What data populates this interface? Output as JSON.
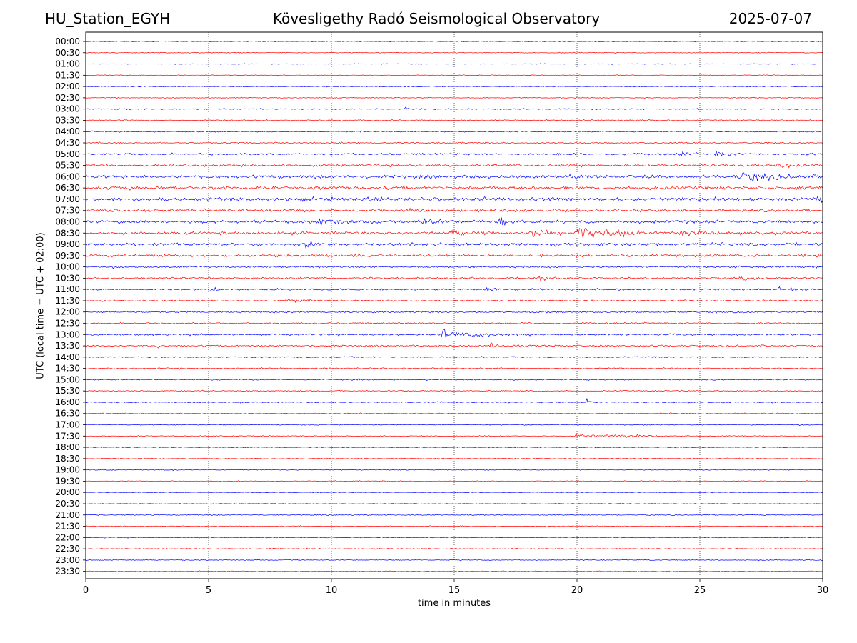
{
  "header": {
    "station": "HU_Station_EGYH",
    "observatory": "Kövesligethy Radó Seismological Observatory",
    "date": "2025-07-07"
  },
  "chart_data": {
    "type": "line",
    "title": "Kövesligethy Radó Seismological Observatory",
    "xlabel": "time in minutes",
    "ylabel": "UTC (local time = UTC + 02:00)",
    "xlim": [
      0,
      30
    ],
    "x_ticks": [
      "0",
      "5",
      "10",
      "15",
      "20",
      "25",
      "30"
    ],
    "grid": "vertical dotted lines at each x tick",
    "colors": {
      "even_rows": "#0000ff",
      "odd_rows": "#ff0000"
    },
    "rows": [
      "00:00",
      "00:30",
      "01:00",
      "01:30",
      "02:00",
      "02:30",
      "03:00",
      "03:30",
      "04:00",
      "04:30",
      "05:00",
      "05:30",
      "06:00",
      "06:30",
      "07:00",
      "07:30",
      "08:00",
      "08:30",
      "09:00",
      "09:30",
      "10:00",
      "10:30",
      "11:00",
      "11:30",
      "12:00",
      "12:30",
      "13:00",
      "13:30",
      "14:00",
      "14:30",
      "15:00",
      "15:30",
      "16:00",
      "16:30",
      "17:00",
      "17:30",
      "18:00",
      "18:30",
      "19:00",
      "19:30",
      "20:00",
      "20:30",
      "21:00",
      "21:30",
      "22:00",
      "22:30",
      "23:00",
      "23:30"
    ],
    "noise_level": [
      0.6,
      0.6,
      0.6,
      0.6,
      0.7,
      0.7,
      0.9,
      1.0,
      1.0,
      1.1,
      1.5,
      1.8,
      2.6,
      2.6,
      2.8,
      2.1,
      2.3,
      2.3,
      2.3,
      2.0,
      1.5,
      1.5,
      1.4,
      1.2,
      1.3,
      1.2,
      1.4,
      1.3,
      1.0,
      1.0,
      0.9,
      0.9,
      0.9,
      0.8,
      0.8,
      0.8,
      0.7,
      0.7,
      0.7,
      0.7,
      0.6,
      0.7,
      0.8,
      0.7,
      0.7,
      0.7,
      0.7,
      0.7
    ],
    "events": [
      {
        "row": "03:00",
        "t": 13.0,
        "amp": 5,
        "dur": 0.15
      },
      {
        "row": "05:00",
        "t": 24.2,
        "amp": 3,
        "dur": 0.5
      },
      {
        "row": "05:00",
        "t": 25.7,
        "amp": 4,
        "dur": 0.6
      },
      {
        "row": "05:30",
        "t": 28.2,
        "amp": 3,
        "dur": 0.8
      },
      {
        "row": "06:00",
        "t": 26.8,
        "amp": 5,
        "dur": 2.0
      },
      {
        "row": "07:00",
        "t": 11.0,
        "amp": 4,
        "dur": 0.5
      },
      {
        "row": "07:00",
        "t": 29.8,
        "amp": 6,
        "dur": 0.4
      },
      {
        "row": "07:30",
        "t": 0.6,
        "amp": 4,
        "dur": 0.5
      },
      {
        "row": "08:00",
        "t": 9.5,
        "amp": 4,
        "dur": 1.5
      },
      {
        "row": "08:00",
        "t": 13.8,
        "amp": 6,
        "dur": 1.0
      },
      {
        "row": "08:00",
        "t": 16.9,
        "amp": 8,
        "dur": 0.6
      },
      {
        "row": "08:30",
        "t": 14.8,
        "amp": 5,
        "dur": 1.0
      },
      {
        "row": "08:30",
        "t": 18.2,
        "amp": 6,
        "dur": 1.0
      },
      {
        "row": "08:30",
        "t": 20.2,
        "amp": 10,
        "dur": 1.5
      },
      {
        "row": "08:30",
        "t": 21.8,
        "amp": 7,
        "dur": 0.6
      },
      {
        "row": "08:30",
        "t": 24.3,
        "amp": 5,
        "dur": 0.8
      },
      {
        "row": "09:00",
        "t": 9.0,
        "amp": 4,
        "dur": 1.0
      },
      {
        "row": "09:30",
        "t": 2.8,
        "amp": 4,
        "dur": 0.3
      },
      {
        "row": "09:30",
        "t": 29.8,
        "amp": 5,
        "dur": 0.3
      },
      {
        "row": "10:30",
        "t": 18.3,
        "amp": 3,
        "dur": 0.8
      },
      {
        "row": "10:30",
        "t": 26.8,
        "amp": 3,
        "dur": 0.8
      },
      {
        "row": "11:00",
        "t": 5.0,
        "amp": 4,
        "dur": 0.4
      },
      {
        "row": "11:00",
        "t": 16.3,
        "amp": 4,
        "dur": 0.3
      },
      {
        "row": "11:00",
        "t": 28.3,
        "amp": 4,
        "dur": 0.5
      },
      {
        "row": "11:30",
        "t": 8.2,
        "amp": 5,
        "dur": 0.6
      },
      {
        "row": "13:00",
        "t": 14.6,
        "amp": 9,
        "dur": 0.8
      },
      {
        "row": "13:00",
        "t": 15.8,
        "amp": 4,
        "dur": 1.0
      },
      {
        "row": "13:30",
        "t": 2.9,
        "amp": 5,
        "dur": 0.2
      },
      {
        "row": "13:30",
        "t": 16.5,
        "amp": 5,
        "dur": 0.3
      },
      {
        "row": "16:00",
        "t": 20.4,
        "amp": 5,
        "dur": 0.25
      },
      {
        "row": "17:30",
        "t": 20.0,
        "amp": 6,
        "dur": 0.8
      },
      {
        "row": "17:30",
        "t": 21.5,
        "amp": 3,
        "dur": 1.5
      },
      {
        "row": "19:00",
        "t": 3.5,
        "amp": 3,
        "dur": 0.2
      }
    ]
  }
}
